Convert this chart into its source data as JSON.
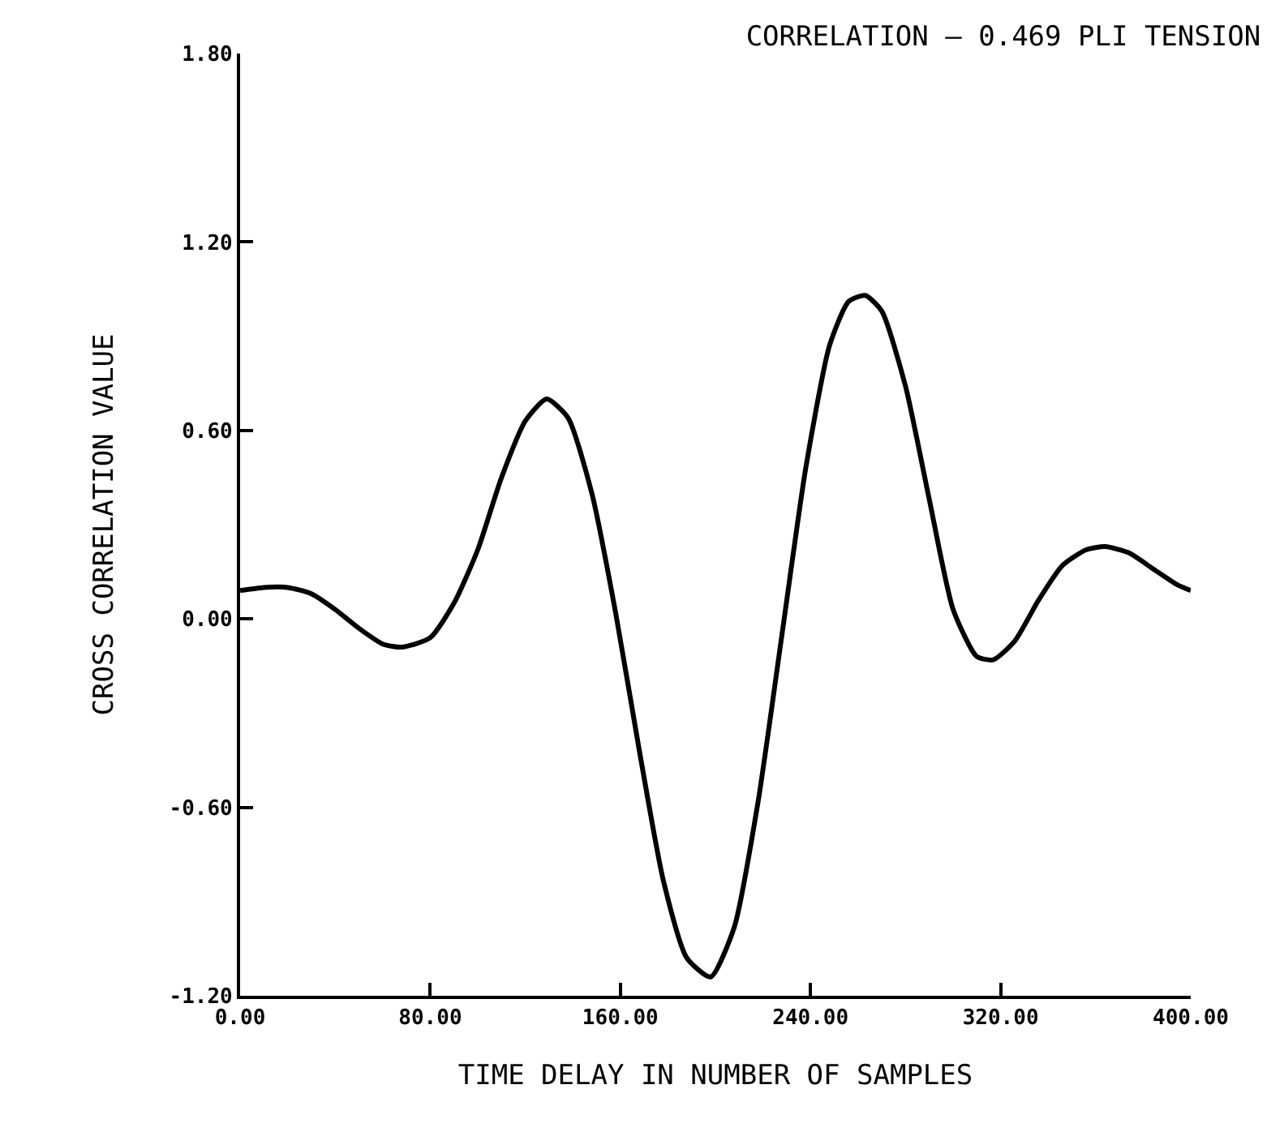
{
  "chart_data": {
    "type": "line",
    "title": "CORRELATION — 0.469 PLI TENSION",
    "xlabel": "TIME DELAY IN NUMBER OF SAMPLES",
    "ylabel": "CROSS CORRELATION VALUE",
    "x": [
      0,
      10,
      20,
      30,
      40,
      50,
      60,
      68,
      80,
      90,
      100,
      110,
      120,
      129,
      138,
      148,
      158,
      168,
      178,
      188,
      198,
      208,
      218,
      228,
      238,
      248,
      256,
      263,
      270,
      280,
      290,
      300,
      310,
      317,
      326,
      336,
      346,
      356,
      364,
      374,
      384,
      394,
      400
    ],
    "series": [
      {
        "color": "#000000",
        "values": [
          0.09,
          0.1,
          0.1,
          0.08,
          0.03,
          -0.03,
          -0.08,
          -0.09,
          -0.06,
          0.05,
          0.22,
          0.45,
          0.63,
          0.7,
          0.64,
          0.4,
          0.02,
          -0.42,
          -0.83,
          -1.08,
          -1.14,
          -0.98,
          -0.58,
          -0.05,
          0.48,
          0.87,
          1.01,
          1.03,
          0.98,
          0.74,
          0.38,
          0.03,
          -0.12,
          -0.13,
          -0.07,
          0.06,
          0.17,
          0.22,
          0.23,
          0.21,
          0.16,
          0.11,
          0.09
        ]
      }
    ],
    "xlim": [
      0,
      400
    ],
    "xticks": [
      {
        "value": 0,
        "label": "0.00"
      },
      {
        "value": 80,
        "label": "80.00"
      },
      {
        "value": 160,
        "label": "160.00"
      },
      {
        "value": 240,
        "label": "240.00"
      },
      {
        "value": 320,
        "label": "320.00"
      },
      {
        "value": 400,
        "label": "400.00"
      }
    ],
    "ylim": [
      -1.2,
      1.8
    ],
    "yticks": [
      {
        "value": -1.2,
        "label": "-1.20"
      },
      {
        "value": -0.6,
        "label": "-0.60"
      },
      {
        "value": 0,
        "label": "0.00"
      },
      {
        "value": 0.6,
        "label": "0.60"
      },
      {
        "value": 1.2,
        "label": "1.20"
      },
      {
        "value": 1.8,
        "label": "1.80"
      }
    ],
    "grid": false,
    "marker": "none",
    "line_style": "solid"
  }
}
